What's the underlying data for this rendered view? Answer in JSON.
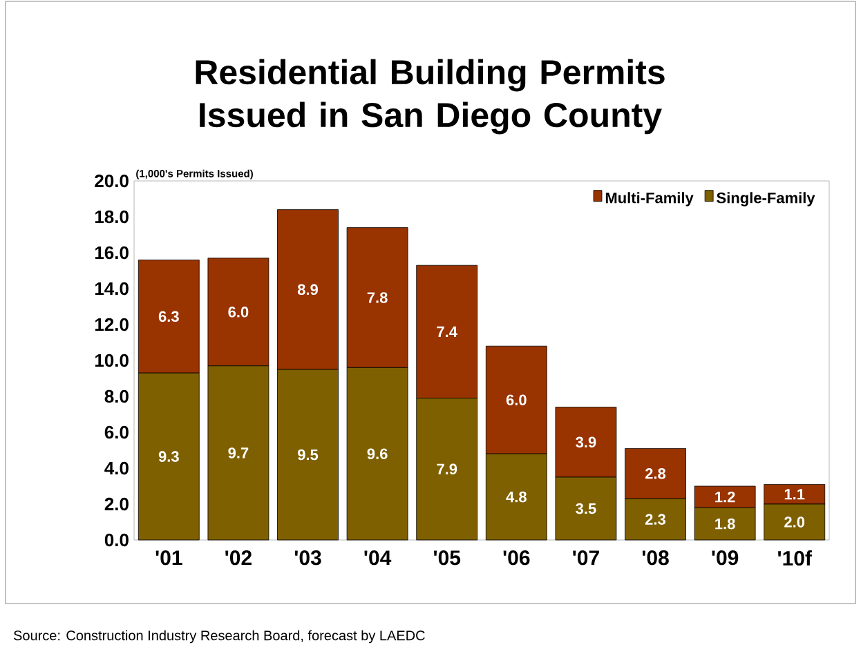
{
  "chart_data": {
    "type": "bar",
    "title": "Residential Building Permits\nIssued in San Diego County",
    "ylabel": "(1,000's Permits Issued)",
    "categories": [
      "'01",
      "'02",
      "'03",
      "'04",
      "'05",
      "'06",
      "'07",
      "'08",
      "'09",
      "'10f"
    ],
    "stacked": true,
    "series": [
      {
        "name": "Single-Family",
        "color": "#7f6000",
        "values": [
          9.3,
          9.7,
          9.5,
          9.6,
          7.9,
          4.8,
          3.5,
          2.3,
          1.8,
          2.0
        ],
        "value_labels": [
          "9.3",
          "9.7",
          "9.5",
          "9.6",
          "7.9",
          "4.8",
          "3.5",
          "2.3",
          "1.8",
          "2.0"
        ]
      },
      {
        "name": "Multi-Family",
        "color": "#993300",
        "values": [
          6.3,
          6.0,
          8.9,
          7.8,
          7.4,
          6.0,
          3.9,
          2.8,
          1.2,
          1.1
        ],
        "value_labels": [
          "6.3",
          "6.0",
          "8.9",
          "7.8",
          "7.4",
          "6.0",
          "3.9",
          "2.8",
          "1.2",
          "1.1"
        ]
      }
    ],
    "ylim": [
      0,
      20
    ],
    "yticks": [
      {
        "value": 0,
        "label": "0.0"
      },
      {
        "value": 2,
        "label": "2.0"
      },
      {
        "value": 4,
        "label": "4.0"
      },
      {
        "value": 6,
        "label": "6.0"
      },
      {
        "value": 8,
        "label": "8.0"
      },
      {
        "value": 10,
        "label": "10.0"
      },
      {
        "value": 12,
        "label": "12.0"
      },
      {
        "value": 14,
        "label": "14.0"
      },
      {
        "value": 16,
        "label": "16.0"
      },
      {
        "value": 18,
        "label": "18.0"
      },
      {
        "value": 20,
        "label": "20.0"
      }
    ],
    "legend": "top right",
    "annotations": [
      "Source:  Construction Industry Research Board, forecast by LAEDC"
    ]
  }
}
